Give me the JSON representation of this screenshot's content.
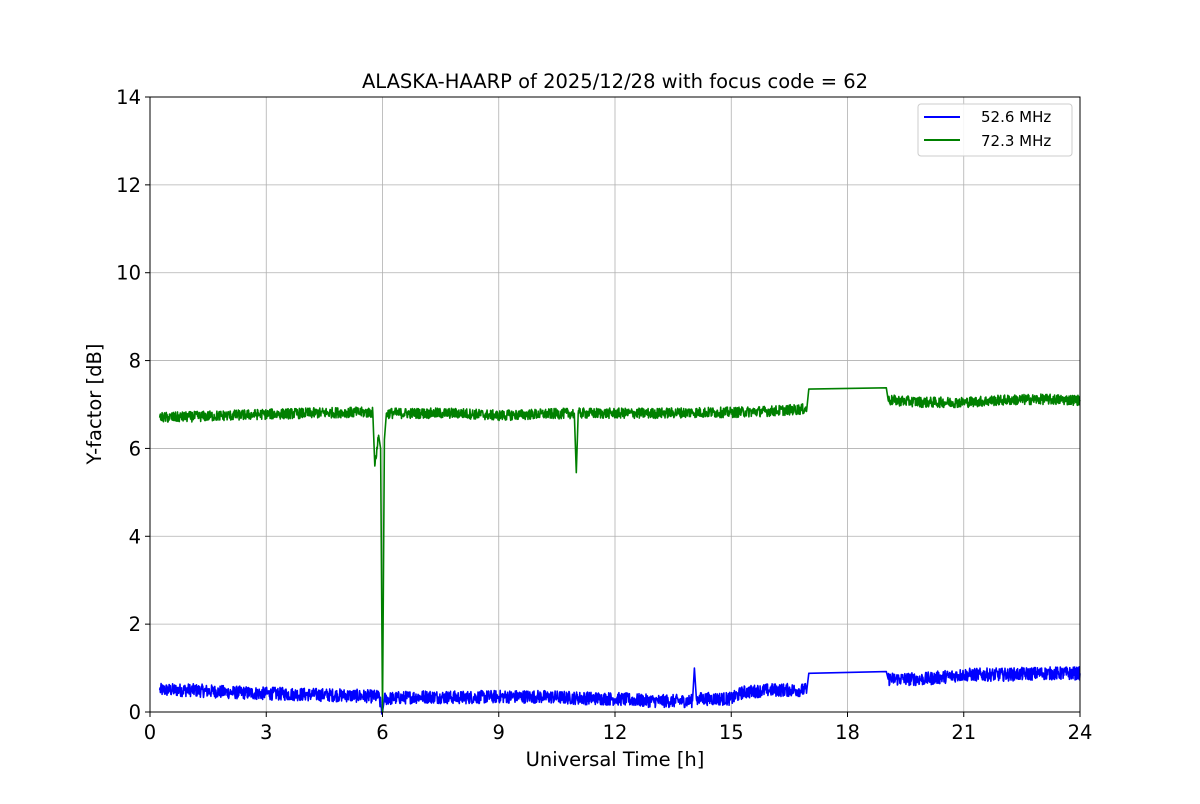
{
  "chart_data": {
    "type": "line",
    "title": "ALASKA-HAARP of 2025/12/28 with focus code = 62",
    "xlabel": "Universal Time [h]",
    "ylabel": "Y-factor [dB]",
    "xlim": [
      0,
      24
    ],
    "ylim": [
      0,
      14
    ],
    "xticks": [
      "0",
      "3",
      "6",
      "9",
      "12",
      "15",
      "18",
      "21",
      "24"
    ],
    "yticks": [
      "0",
      "2",
      "4",
      "6",
      "8",
      "10",
      "12",
      "14"
    ],
    "grid": true,
    "legend_position": "top-right",
    "series": [
      {
        "name": "52.6 MHz",
        "color": "#0000ff",
        "noise_amplitude": 0.15,
        "points": [
          [
            0.25,
            0.5
          ],
          [
            1.0,
            0.5
          ],
          [
            2.0,
            0.45
          ],
          [
            3.0,
            0.42
          ],
          [
            4.0,
            0.4
          ],
          [
            5.0,
            0.38
          ],
          [
            5.9,
            0.35
          ],
          [
            6.0,
            0.0
          ],
          [
            6.05,
            0.3
          ],
          [
            7.0,
            0.35
          ],
          [
            8.0,
            0.33
          ],
          [
            9.0,
            0.35
          ],
          [
            10.0,
            0.35
          ],
          [
            11.0,
            0.32
          ],
          [
            12.0,
            0.3
          ],
          [
            13.0,
            0.25
          ],
          [
            14.0,
            0.25
          ],
          [
            14.05,
            1.0
          ],
          [
            14.1,
            0.3
          ],
          [
            15.0,
            0.3
          ],
          [
            15.3,
            0.45
          ],
          [
            16.0,
            0.5
          ],
          [
            16.95,
            0.5
          ],
          [
            17.0,
            0.88
          ],
          [
            19.0,
            0.92
          ],
          [
            19.05,
            0.75
          ],
          [
            20.0,
            0.75
          ],
          [
            21.0,
            0.85
          ],
          [
            22.0,
            0.85
          ],
          [
            23.0,
            0.88
          ],
          [
            24.0,
            0.88
          ]
        ]
      },
      {
        "name": "72.3 MHz",
        "color": "#008000",
        "noise_amplitude": 0.12,
        "points": [
          [
            0.25,
            6.7
          ],
          [
            1.0,
            6.72
          ],
          [
            2.0,
            6.75
          ],
          [
            3.0,
            6.78
          ],
          [
            4.0,
            6.8
          ],
          [
            5.0,
            6.82
          ],
          [
            5.75,
            6.82
          ],
          [
            5.8,
            5.6
          ],
          [
            5.9,
            6.3
          ],
          [
            5.95,
            6.0
          ],
          [
            6.0,
            0.0
          ],
          [
            6.05,
            6.2
          ],
          [
            6.1,
            6.8
          ],
          [
            7.0,
            6.8
          ],
          [
            8.0,
            6.8
          ],
          [
            9.0,
            6.75
          ],
          [
            10.0,
            6.78
          ],
          [
            10.95,
            6.8
          ],
          [
            11.0,
            5.45
          ],
          [
            11.05,
            6.8
          ],
          [
            12.0,
            6.8
          ],
          [
            13.0,
            6.8
          ],
          [
            14.0,
            6.82
          ],
          [
            15.0,
            6.82
          ],
          [
            16.0,
            6.85
          ],
          [
            16.95,
            6.9
          ],
          [
            17.0,
            7.35
          ],
          [
            19.0,
            7.38
          ],
          [
            19.05,
            7.1
          ],
          [
            20.0,
            7.05
          ],
          [
            21.0,
            7.05
          ],
          [
            22.0,
            7.1
          ],
          [
            23.0,
            7.12
          ],
          [
            24.0,
            7.1
          ]
        ]
      }
    ]
  }
}
